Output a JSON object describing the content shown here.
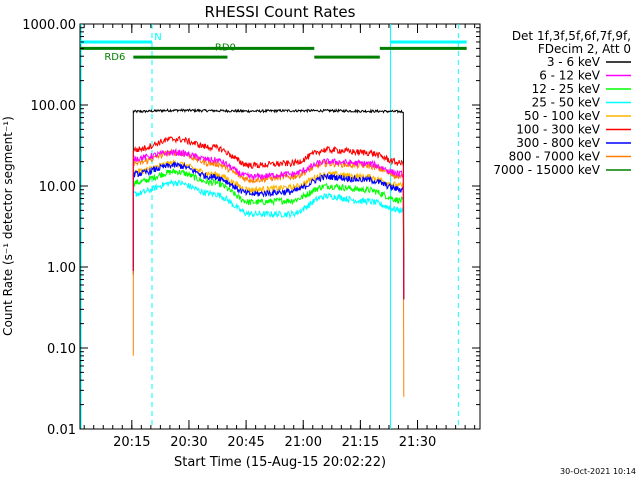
{
  "chart_data": {
    "type": "line",
    "title": "RHESSI Count Rates",
    "xlabel": "Start Time (15-Aug-15 20:02:22)",
    "ylabel": "Count Rate (s⁻¹ detector segment⁻¹)",
    "y_scale": "log",
    "ylim": [
      0.01,
      1000
    ],
    "y_tick_values": [
      0.01,
      0.1,
      1,
      10,
      100,
      1000
    ],
    "y_tick_labels": [
      "0.01",
      "0.10",
      "1.00",
      "10.00",
      "100.00",
      "1000.00"
    ],
    "xlim_minutes": [
      0,
      105
    ],
    "x_tick_minutes": [
      13.6,
      28.6,
      43.6,
      58.6,
      73.6,
      88.6
    ],
    "x_tick_labels": [
      "20:15",
      "20:30",
      "20:45",
      "21:00",
      "21:15",
      "21:30"
    ],
    "legend_header": [
      "Det 1f,3f,5f,6f,7f,9f,",
      "FDecim 2, Att 0"
    ],
    "legend_placement": "right",
    "data_window_minutes": [
      14,
      85
    ],
    "series": [
      {
        "name": "3 - 6 keV",
        "color": "#000000",
        "x": [
          14,
          25,
          35,
          45,
          55,
          65,
          75,
          85
        ],
        "values": [
          83,
          86,
          85,
          84,
          85,
          85,
          84,
          83
        ]
      },
      {
        "name": "6 - 12 keV",
        "color": "#ff00ff",
        "x": [
          14,
          25,
          35,
          45,
          55,
          65,
          75,
          85
        ],
        "values": [
          22,
          26,
          21,
          13,
          14,
          20,
          19,
          14
        ]
      },
      {
        "name": "12 - 25 keV",
        "color": "#00ff00",
        "x": [
          14,
          25,
          35,
          45,
          55,
          65,
          75,
          85
        ],
        "values": [
          11,
          15,
          11,
          6.3,
          6.6,
          10,
          9,
          6.6
        ]
      },
      {
        "name": "25 - 50 keV",
        "color": "#00ffff",
        "x": [
          14,
          25,
          35,
          45,
          55,
          65,
          75,
          85
        ],
        "values": [
          8,
          11,
          8,
          4.5,
          4.5,
          7.5,
          6.5,
          5
        ]
      },
      {
        "name": "50 - 100 keV",
        "color": "#ffb400",
        "x": [
          14,
          25,
          35,
          45,
          55,
          65,
          75,
          85
        ],
        "values": [
          15,
          19,
          14,
          9,
          9.5,
          14,
          13,
          10
        ]
      },
      {
        "name": "100 - 300 keV",
        "color": "#ff0000",
        "x": [
          14,
          25,
          35,
          45,
          55,
          65,
          75,
          85
        ],
        "values": [
          28,
          38,
          30,
          18,
          19,
          28,
          26,
          19
        ]
      },
      {
        "name": "300 - 800 keV",
        "color": "#0000ff",
        "x": [
          14,
          25,
          35,
          45,
          55,
          65,
          75,
          85
        ],
        "values": [
          14,
          18,
          13,
          8,
          8.5,
          13,
          12,
          9
        ]
      },
      {
        "name": "800 - 7000 keV",
        "color": "#ff8000",
        "x": [
          14,
          25,
          35,
          45,
          55,
          65,
          75,
          85
        ],
        "values": [
          19,
          26,
          19,
          12,
          13,
          19,
          18,
          13
        ]
      },
      {
        "name": "7000 - 15000 keV",
        "color": "#008000",
        "x": [],
        "values": []
      }
    ],
    "attenuator_bars": [
      {
        "label": "N",
        "color": "#00ffff",
        "value": 600,
        "segments": [
          [
            0,
            18.9
          ],
          [
            81.5,
            101.5
          ]
        ]
      },
      {
        "label": "RD0",
        "color": "#008000",
        "value": 500,
        "segments": [
          [
            0,
            38.7
          ],
          [
            81.5,
            101.5
          ]
        ]
      },
      {
        "label": "RD6",
        "color": "#008000",
        "value": 390,
        "segments": [
          [
            14,
            38.7
          ],
          [
            61.5,
            78.7
          ]
        ]
      },
      {
        "label": "",
        "color": "#008000",
        "value": 500,
        "segments": [
          [
            38.7,
            61.5
          ],
          [
            78.7,
            81.5
          ]
        ]
      }
    ],
    "vertical_markers": [
      {
        "x": 0,
        "color": "#00ffff",
        "style": "solid"
      },
      {
        "x": 18.9,
        "color": "#00ffff",
        "style": "dashed"
      },
      {
        "x": 81.5,
        "color": "#00ffff",
        "style": "solid"
      },
      {
        "x": 99.3,
        "color": "#00ffff",
        "style": "dashed"
      }
    ],
    "footer": "30-Oct-2021 10:14"
  }
}
